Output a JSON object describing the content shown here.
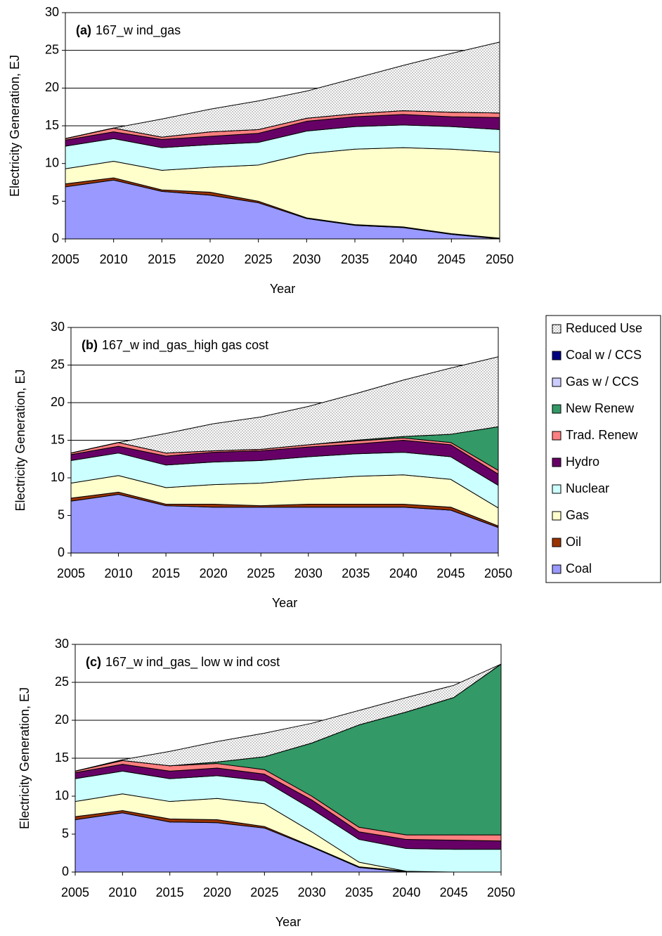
{
  "chart_data": [
    {
      "type": "stacked_area",
      "label": "(a)",
      "title": "167_w ind_gas",
      "xlabel": "Year",
      "ylabel": "Electricity Generation, EJ",
      "x": [
        2005,
        2010,
        2015,
        2020,
        2025,
        2030,
        2035,
        2040,
        2045,
        2050
      ],
      "xlim": [
        2005,
        2050
      ],
      "xticks": [
        2005,
        2010,
        2015,
        2020,
        2025,
        2030,
        2035,
        2040,
        2045,
        2050
      ],
      "ylim": [
        0,
        30
      ],
      "yticks": [
        0,
        5,
        10,
        15,
        20,
        25,
        30
      ],
      "grid": true,
      "series": [
        {
          "name": "Coal",
          "color": "#9999ff",
          "values": [
            6.9,
            7.8,
            6.3,
            5.8,
            4.8,
            2.7,
            1.8,
            1.5,
            0.6,
            0
          ]
        },
        {
          "name": "Oil",
          "color": "#993300",
          "values": [
            0.4,
            0.3,
            0.2,
            0.4,
            0.2,
            0.1,
            0.1,
            0.1,
            0.1,
            0.1
          ]
        },
        {
          "name": "Gas",
          "color": "#ffffcc",
          "values": [
            2.0,
            2.2,
            2.6,
            3.3,
            4.8,
            8.5,
            10.0,
            10.5,
            11.2,
            11.4
          ]
        },
        {
          "name": "Nuclear",
          "color": "#ccffff",
          "values": [
            3.0,
            3.0,
            3.0,
            3.0,
            3.0,
            3.0,
            3.0,
            3.0,
            3.0,
            3.0
          ]
        },
        {
          "name": "Hydro",
          "color": "#660066",
          "values": [
            0.8,
            0.9,
            1.1,
            1.1,
            1.2,
            1.3,
            1.3,
            1.4,
            1.3,
            1.6
          ]
        },
        {
          "name": "Trad. Renew",
          "color": "#ff8080",
          "values": [
            0.2,
            0.5,
            0.3,
            0.6,
            0.5,
            0.4,
            0.4,
            0.5,
            0.6,
            0.6
          ]
        },
        {
          "name": "New Renew",
          "color": "#339966",
          "values": [
            0,
            0,
            0,
            0,
            0,
            0,
            0,
            0,
            0,
            0
          ]
        },
        {
          "name": "Gas w / CCS",
          "color": "#ccccff",
          "values": [
            0,
            0,
            0,
            0,
            0,
            0,
            0,
            0,
            0,
            0
          ]
        },
        {
          "name": "Coal w / CCS",
          "color": "#000080",
          "values": [
            0,
            0,
            0,
            0,
            0,
            0,
            0,
            0,
            0,
            0
          ]
        },
        {
          "name": "Reduced Use",
          "color": "#e4e4e4",
          "values": [
            0,
            0,
            2.4,
            3.0,
            3.8,
            3.6,
            4.7,
            6.0,
            7.8,
            9.4
          ]
        }
      ]
    },
    {
      "type": "stacked_area",
      "label": "(b)",
      "title": "167_w ind_gas_high gas cost",
      "xlabel": "Year",
      "ylabel": "Electricity Generation, EJ",
      "legend": "right",
      "x": [
        2005,
        2010,
        2015,
        2020,
        2025,
        2030,
        2035,
        2040,
        2045,
        2050
      ],
      "xlim": [
        2005,
        2050
      ],
      "xticks": [
        2005,
        2010,
        2015,
        2020,
        2025,
        2030,
        2035,
        2040,
        2045,
        2050
      ],
      "ylim": [
        0,
        30
      ],
      "yticks": [
        0,
        5,
        10,
        15,
        20,
        25,
        30
      ],
      "grid": true,
      "series": [
        {
          "name": "Coal",
          "color": "#9999ff",
          "values": [
            6.9,
            7.8,
            6.3,
            6.1,
            6.1,
            6.1,
            6.1,
            6.1,
            5.7,
            3.4
          ]
        },
        {
          "name": "Oil",
          "color": "#993300",
          "values": [
            0.4,
            0.3,
            0.2,
            0.4,
            0.2,
            0.4,
            0.4,
            0.4,
            0.4,
            0.2
          ]
        },
        {
          "name": "Gas",
          "color": "#ffffcc",
          "values": [
            2.0,
            2.2,
            2.2,
            2.6,
            3.0,
            3.3,
            3.7,
            3.9,
            3.7,
            2.4
          ]
        },
        {
          "name": "Nuclear",
          "color": "#ccffff",
          "values": [
            3.0,
            3.0,
            3.0,
            3.0,
            3.0,
            3.0,
            3.0,
            3.0,
            3.0,
            3.0
          ]
        },
        {
          "name": "Hydro",
          "color": "#660066",
          "values": [
            0.8,
            0.9,
            1.2,
            1.3,
            1.3,
            1.3,
            1.3,
            1.6,
            1.6,
            1.5
          ]
        },
        {
          "name": "Trad. Renew",
          "color": "#ff8080",
          "values": [
            0.2,
            0.5,
            0.4,
            0.2,
            0.2,
            0.3,
            0.4,
            0.3,
            0.3,
            0.5
          ]
        },
        {
          "name": "New Renew",
          "color": "#339966",
          "values": [
            0,
            0,
            0,
            0,
            0,
            0,
            0.1,
            0.2,
            1.1,
            5.8
          ]
        },
        {
          "name": "Gas w / CCS",
          "color": "#ccccff",
          "values": [
            0,
            0,
            0,
            0,
            0,
            0,
            0,
            0,
            0,
            0
          ]
        },
        {
          "name": "Coal w / CCS",
          "color": "#000080",
          "values": [
            0,
            0,
            0,
            0,
            0,
            0,
            0,
            0,
            0,
            0
          ]
        },
        {
          "name": "Reduced Use",
          "color": "#e4e4e4",
          "values": [
            0,
            0,
            2.6,
            3.6,
            4.3,
            5.1,
            6.2,
            7.5,
            8.8,
            9.3
          ]
        }
      ]
    },
    {
      "type": "stacked_area",
      "label": "(c)",
      "title": "167_w ind_gas_ low w ind cost",
      "xlabel": "Year",
      "ylabel": "Electricity Generation, EJ",
      "x": [
        2005,
        2010,
        2015,
        2020,
        2025,
        2030,
        2035,
        2040,
        2045,
        2050
      ],
      "xlim": [
        2005,
        2050
      ],
      "xticks": [
        2005,
        2010,
        2015,
        2020,
        2025,
        2030,
        2035,
        2040,
        2045,
        2050
      ],
      "ylim": [
        0,
        30
      ],
      "yticks": [
        0,
        5,
        10,
        15,
        20,
        25,
        30
      ],
      "grid": true,
      "series": [
        {
          "name": "Coal",
          "color": "#9999ff",
          "values": [
            6.9,
            7.8,
            6.6,
            6.5,
            5.8,
            3.3,
            0.6,
            0,
            0,
            0
          ]
        },
        {
          "name": "Oil",
          "color": "#993300",
          "values": [
            0.4,
            0.3,
            0.4,
            0.4,
            0.2,
            0.1,
            0.1,
            0.1,
            0,
            0
          ]
        },
        {
          "name": "Gas",
          "color": "#ffffcc",
          "values": [
            2.0,
            2.2,
            2.3,
            2.8,
            3.0,
            1.9,
            0.6,
            0,
            0,
            0
          ]
        },
        {
          "name": "Nuclear",
          "color": "#ccffff",
          "values": [
            3.0,
            3.0,
            3.0,
            3.0,
            3.0,
            3.0,
            3.0,
            3.0,
            3.0,
            3.0
          ]
        },
        {
          "name": "Hydro",
          "color": "#660066",
          "values": [
            0.8,
            0.9,
            1.0,
            1.0,
            0.9,
            1.2,
            1.0,
            1.2,
            1.2,
            1.1
          ]
        },
        {
          "name": "Trad. Renew",
          "color": "#ff8080",
          "values": [
            0.2,
            0.5,
            0.7,
            0.6,
            0.6,
            0.5,
            0.6,
            0.6,
            0.7,
            0.8
          ]
        },
        {
          "name": "New Renew",
          "color": "#339966",
          "values": [
            0,
            0,
            0,
            0.2,
            1.7,
            7.0,
            13.5,
            16.2,
            18.1,
            22.5
          ]
        },
        {
          "name": "Gas w / CCS",
          "color": "#ccccff",
          "values": [
            0,
            0,
            0,
            0,
            0,
            0,
            0,
            0,
            0,
            0
          ]
        },
        {
          "name": "Coal w / CCS",
          "color": "#000080",
          "values": [
            0,
            0,
            0,
            0,
            0,
            0,
            0,
            0,
            0,
            0
          ]
        },
        {
          "name": "Reduced Use",
          "color": "#e4e4e4",
          "values": [
            0,
            0.1,
            1.9,
            2.7,
            3.1,
            2.6,
            1.9,
            1.9,
            1.6,
            0
          ]
        }
      ]
    }
  ]
}
